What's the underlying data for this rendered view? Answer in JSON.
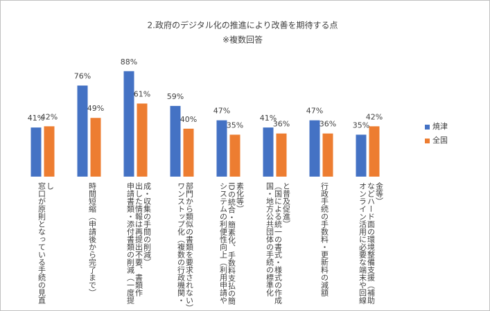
{
  "chart_data": {
    "type": "bar",
    "title": "2.政府のデジタル化の推進により改善を期待する点",
    "subtitle": "※複数回答",
    "categories": [
      "窓口が原則となっている手続の見直し",
      "時間短縮（申請後から完了まで）",
      "申請書類・添付書類の削減（一度提出した情報は再提出不要、書類作成・収集の手間の削減）",
      "ワンストップ化（複数の行政機関・部門から類似の書類を要求されない）",
      "システムの利便性向上（利用申請やIDの統合・簡素化、手数料支払の簡素化等）",
      "国・地方公共団体の手続の標準化（国による統一の書式・様式の作成と普及促進）",
      "行政手続の手数料・更新料の減額",
      "オンライン活用に必要な端末や回線などハード面の環境整備支援（補助金等）"
    ],
    "series": [
      {
        "name": "焼津",
        "color": "#4472c4",
        "values": [
          41,
          76,
          88,
          59,
          47,
          41,
          47,
          35
        ],
        "value_labels": [
          "41%",
          "76%",
          "88%",
          "59%",
          "47%",
          "41%",
          "47%",
          "35%"
        ]
      },
      {
        "name": "全国",
        "color": "#ed7d31",
        "values": [
          42,
          49,
          61,
          40,
          35,
          36,
          36,
          42
        ],
        "value_labels": [
          "42%",
          "49%",
          "61%",
          "40%",
          "35%",
          "36%",
          "36%",
          "42%"
        ]
      }
    ],
    "ylim": [
      0,
      100
    ],
    "legend": "right"
  }
}
